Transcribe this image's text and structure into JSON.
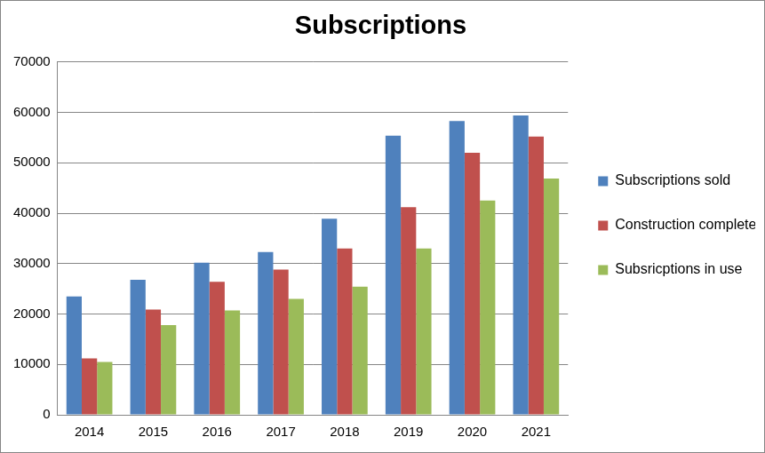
{
  "chart_data": {
    "type": "bar",
    "title": "Subscriptions",
    "categories": [
      "2014",
      "2015",
      "2016",
      "2017",
      "2018",
      "2019",
      "2020",
      "2021"
    ],
    "series": [
      {
        "name": "Subscriptions sold",
        "color": "#4f81bd",
        "values": [
          23500,
          26800,
          30200,
          32300,
          38900,
          55400,
          58300,
          59400
        ]
      },
      {
        "name": "Construction completed",
        "color": "#c0504d",
        "values": [
          11200,
          20900,
          26400,
          28800,
          33000,
          41200,
          52000,
          55200
        ]
      },
      {
        "name": "Subsricptions in use",
        "color": "#9bbb59",
        "values": [
          10500,
          17800,
          20700,
          23000,
          25400,
          33000,
          42500,
          46900
        ]
      }
    ],
    "ylim": [
      0,
      70000
    ],
    "yticks": [
      0,
      10000,
      20000,
      30000,
      40000,
      50000,
      60000,
      70000
    ],
    "grid": true,
    "legend": "right"
  }
}
